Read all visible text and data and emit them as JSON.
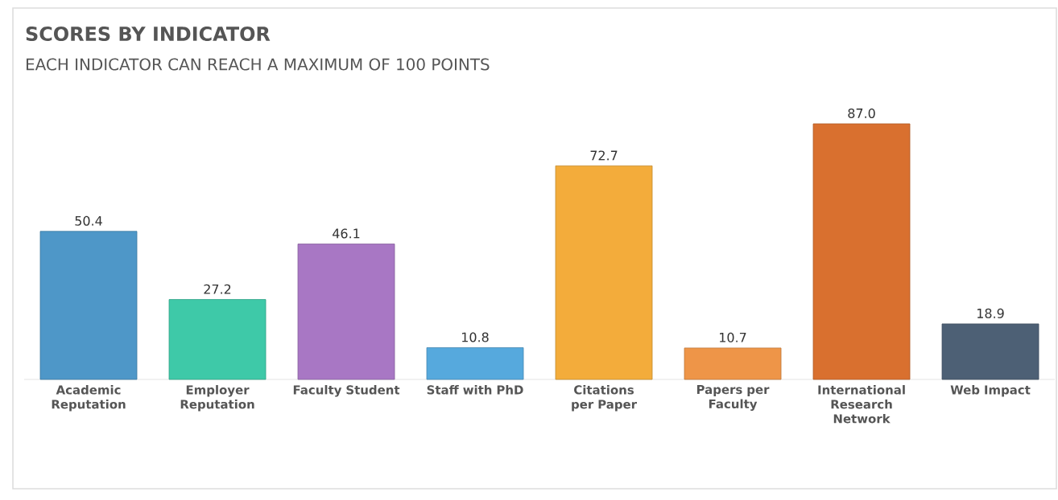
{
  "chart_data": {
    "type": "bar",
    "title": "SCORES BY INDICATOR",
    "subtitle": "EACH INDICATOR CAN REACH A MAXIMUM OF 100 POINTS",
    "categories": [
      "Academic Reputation",
      "Employer Reputation",
      "Faculty Student",
      "Staff with PhD",
      "Citations per Paper",
      "Papers per Faculty",
      "International Research Network",
      "Web Impact"
    ],
    "values": [
      50.4,
      27.2,
      46.1,
      10.8,
      72.7,
      10.7,
      87.0,
      18.9
    ],
    "colors": [
      "#4e97c8",
      "#3ec9a8",
      "#a877c4",
      "#56a9dd",
      "#f3ac3b",
      "#ee9548",
      "#d9702f",
      "#4d6075"
    ],
    "value_labels": [
      "50.4",
      "27.2",
      "46.1",
      "10.8",
      "72.7",
      "10.7",
      "87.0",
      "18.9"
    ]
  }
}
